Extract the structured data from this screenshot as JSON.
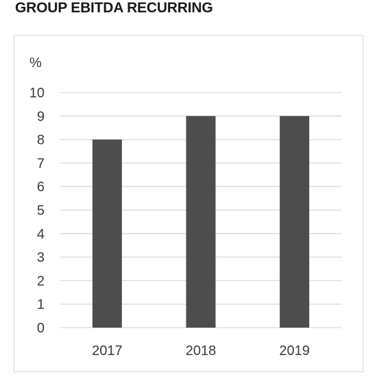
{
  "chart_data": {
    "type": "bar",
    "title": "GROUP EBITDA RECURRING",
    "ylabel": "%",
    "categories": [
      "2017",
      "2018",
      "2019"
    ],
    "values": [
      8,
      9,
      9
    ],
    "ylim": [
      0,
      10
    ],
    "yticks": [
      "0",
      "1",
      "2",
      "3",
      "4",
      "5",
      "6",
      "7",
      "8",
      "9",
      "10"
    ],
    "grid": true,
    "legend": "none",
    "bar_color": "#4d4d4d",
    "grid_color": "#d9d9d9"
  }
}
